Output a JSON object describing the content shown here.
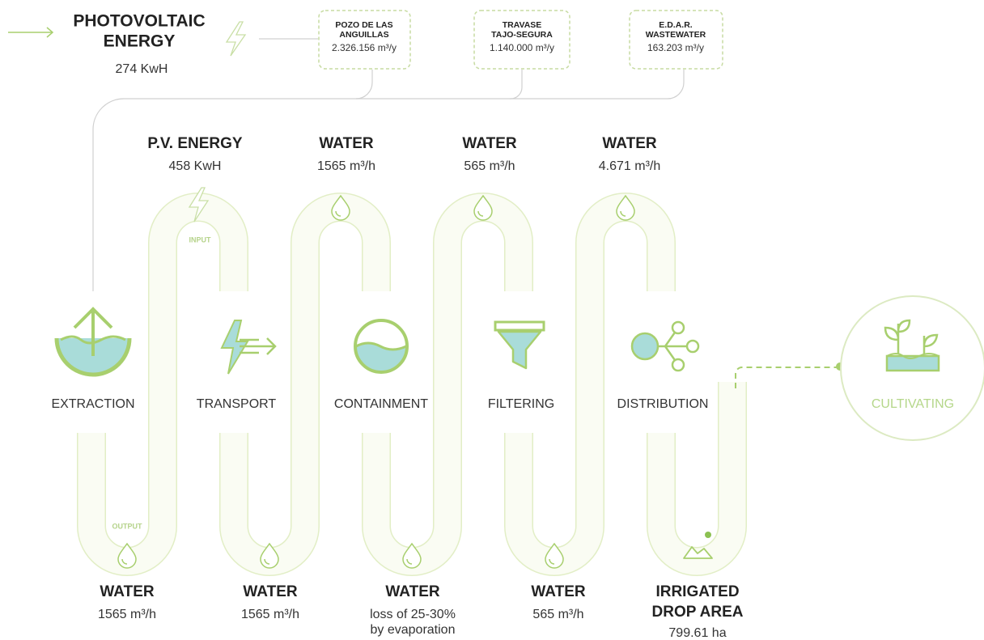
{
  "energy_source": {
    "title_lines": [
      "PHOTOVOLTAIC",
      "ENERGY"
    ],
    "value": "274 KwH"
  },
  "water_sources": [
    {
      "name_lines": [
        "POZO DE LAS",
        "ANGUILLAS"
      ],
      "value": "2.326.156 m³/y"
    },
    {
      "name_lines": [
        "TRAVASE",
        "TAJO-SEGURA"
      ],
      "value": "1.140.000 m³/y"
    },
    {
      "name_lines": [
        "E.D.A.R.",
        "WASTEWATER"
      ],
      "value": "163.203 m³/y"
    }
  ],
  "inputs": [
    {
      "label": "P.V. ENERGY",
      "value": "458 KwH"
    },
    {
      "label": "WATER",
      "value": "1565 m³/h"
    },
    {
      "label": "WATER",
      "value": "565 m³/h"
    },
    {
      "label": "WATER",
      "value": "4.671 m³/h"
    }
  ],
  "stages": [
    "EXTRACTION",
    "TRANSPORT",
    "CONTAINMENT",
    "FILTERING",
    "DISTRIBUTION",
    "CULTIVATING"
  ],
  "flow_labels": {
    "input": "INPUT",
    "output": "OUTPUT"
  },
  "outputs": [
    {
      "label_lines": [
        "WATER"
      ],
      "value_lines": [
        "1565 m³/h"
      ]
    },
    {
      "label_lines": [
        "WATER"
      ],
      "value_lines": [
        "1565 m³/h"
      ]
    },
    {
      "label_lines": [
        "WATER"
      ],
      "value_lines": [
        "loss of 25-30%",
        "by evaporation"
      ]
    },
    {
      "label_lines": [
        "WATER"
      ],
      "value_lines": [
        "565 m³/h"
      ]
    },
    {
      "label_lines": [
        "IRRIGATED",
        "DROP AREA"
      ],
      "value_lines": [
        "799.61 ha"
      ]
    }
  ]
}
